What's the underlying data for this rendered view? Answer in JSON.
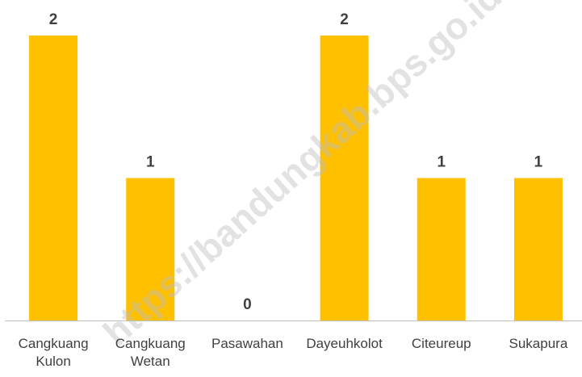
{
  "chart_data": {
    "type": "bar",
    "categories": [
      "Cangkuang Kulon",
      "Cangkuang Wetan",
      "Pasawahan",
      "Dayeuhkolot",
      "Citeureup",
      "Sukapura"
    ],
    "values": [
      2,
      1,
      0,
      2,
      1,
      1
    ],
    "color": "#ffc000",
    "ylim": [
      0,
      2
    ],
    "watermark": "https://bandungkab.bps.go.id"
  }
}
